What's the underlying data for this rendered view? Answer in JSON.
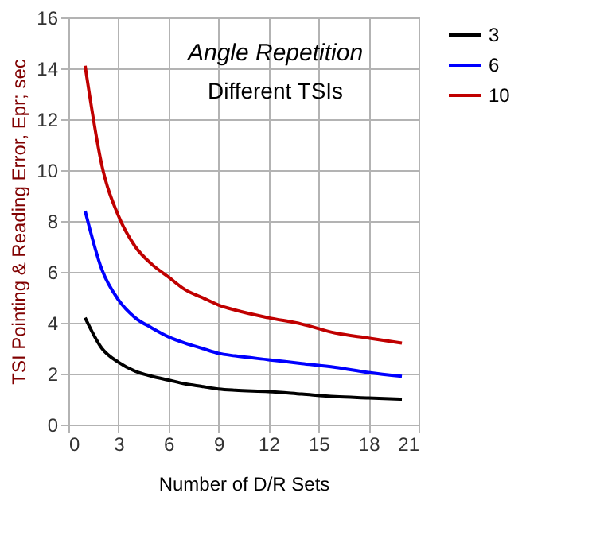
{
  "chart_data": {
    "type": "line",
    "title": "Angle Repetition",
    "subtitle": "Different TSIs",
    "xlabel": "Number of  D/R Sets",
    "ylabel": "TSI Pointing & Reading Error, Epr; sec",
    "x": [
      1,
      2,
      3,
      4,
      5,
      6,
      7,
      8,
      9,
      10,
      12,
      14,
      16,
      18,
      20
    ],
    "series": [
      {
        "name": "3",
        "color": "#000000",
        "values": [
          4.2,
          3.0,
          2.45,
          2.1,
          1.9,
          1.75,
          1.6,
          1.5,
          1.4,
          1.35,
          1.3,
          1.2,
          1.1,
          1.05,
          1.0
        ]
      },
      {
        "name": "6",
        "color": "#0000ff",
        "values": [
          8.4,
          6.1,
          4.9,
          4.2,
          3.8,
          3.45,
          3.2,
          3.0,
          2.8,
          2.7,
          2.55,
          2.4,
          2.25,
          2.05,
          1.9
        ]
      },
      {
        "name": "10",
        "color": "#c00000",
        "values": [
          14.1,
          10.2,
          8.2,
          7.0,
          6.3,
          5.8,
          5.3,
          5.0,
          4.7,
          4.5,
          4.2,
          3.95,
          3.6,
          3.4,
          3.2
        ]
      }
    ],
    "xlim": [
      0,
      21
    ],
    "xticks": [
      0,
      3,
      6,
      9,
      12,
      15,
      18,
      21
    ],
    "ylim": [
      0,
      16
    ],
    "yticks": [
      0,
      2,
      4,
      6,
      8,
      10,
      12,
      14,
      16
    ],
    "grid": true,
    "legend": "right",
    "marker": "none",
    "line_style": "solid"
  }
}
